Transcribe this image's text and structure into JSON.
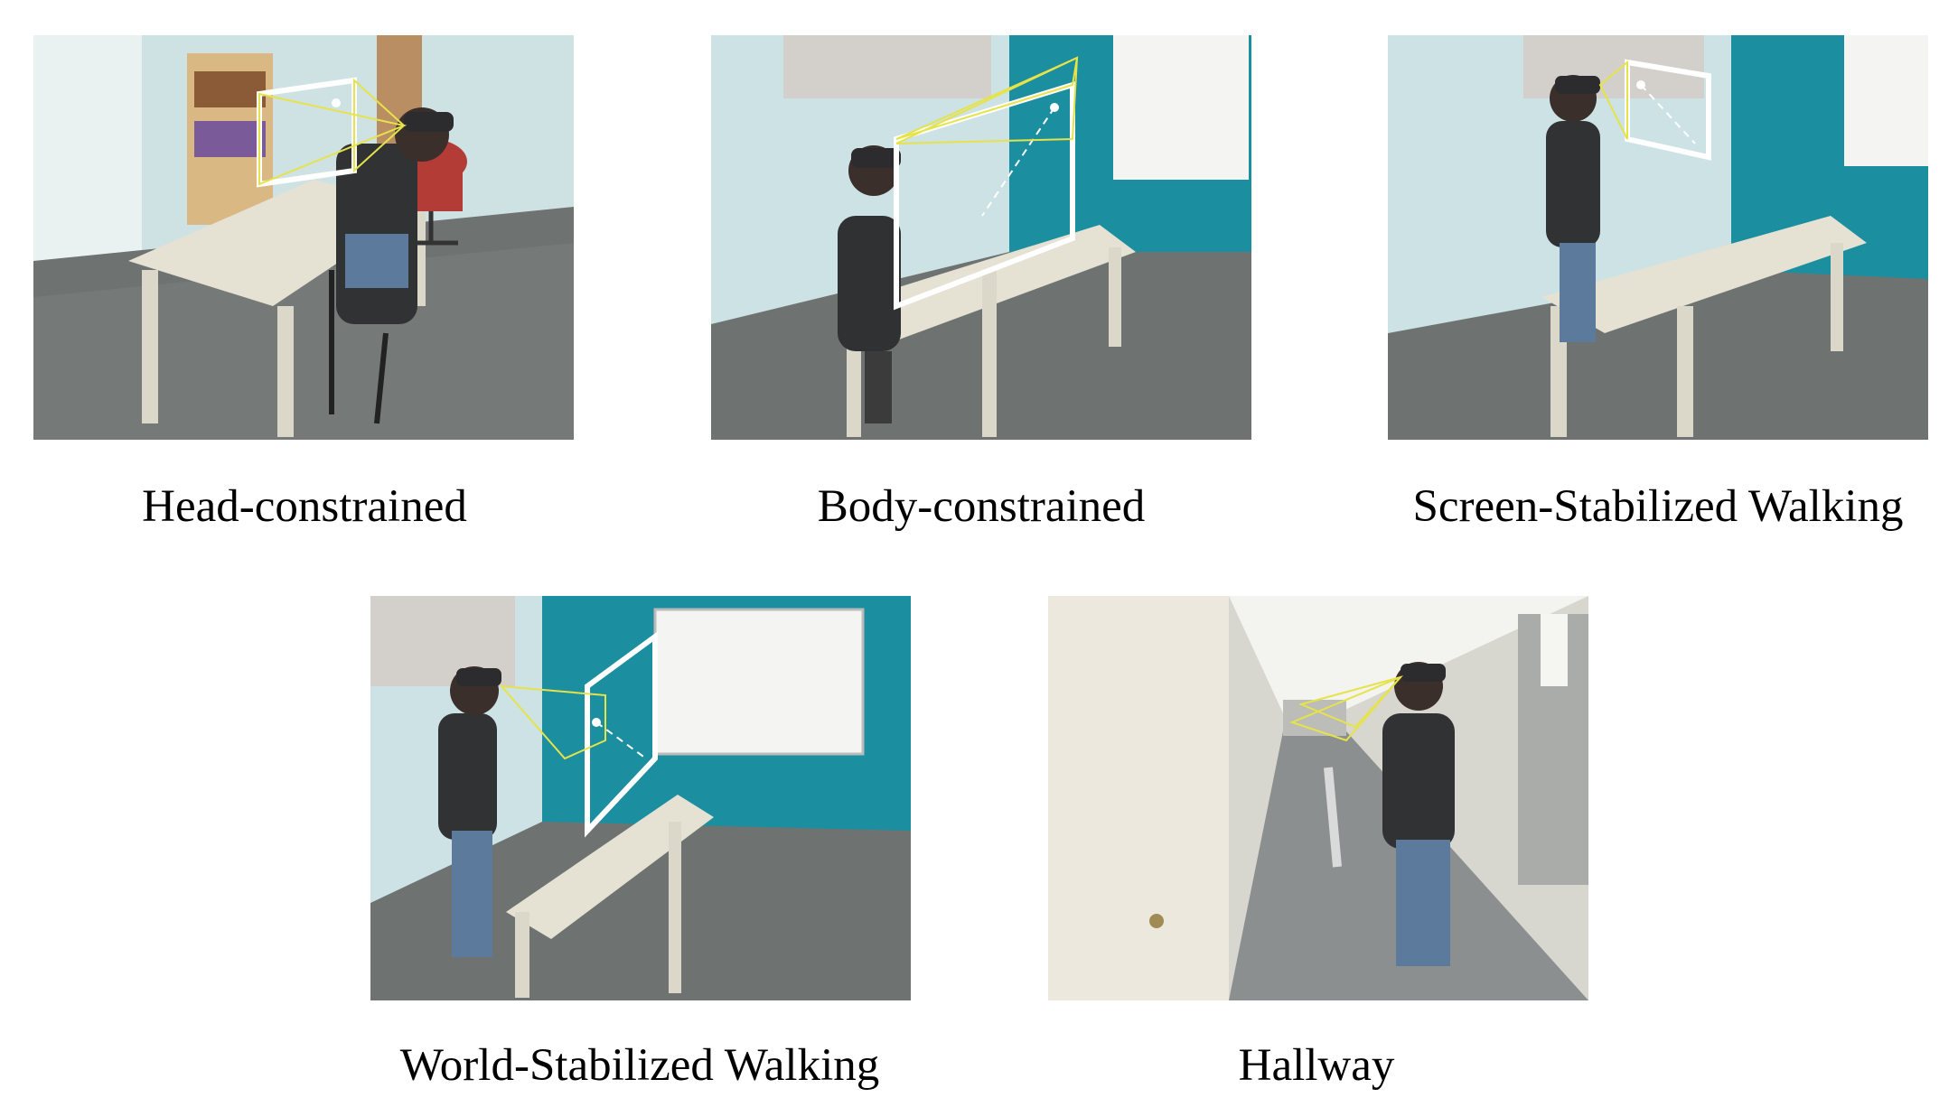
{
  "figure": {
    "panels": [
      {
        "id": "head-constrained",
        "caption": "Head-constrained",
        "scene": "seated participant wearing headset at table, virtual screen near face"
      },
      {
        "id": "body-constrained",
        "caption": "Body-constrained",
        "scene": "seated participant, large virtual screen in front of table"
      },
      {
        "id": "screen-stabilized-walking",
        "caption": "Screen-Stabilized Walking",
        "scene": "standing participant, virtual screen fixed to head view"
      },
      {
        "id": "world-stabilized-walking",
        "caption": "World-Stabilized Walking",
        "scene": "walking participant, virtual screen fixed at end of table"
      },
      {
        "id": "hallway",
        "caption": "Hallway",
        "scene": "participant walking down long hallway with headset"
      }
    ]
  },
  "colors": {
    "wall_light": "#cfe3e5",
    "wall_teal": "#1b8ea0",
    "carpet": "#6f7475",
    "table": "#e4e0d2",
    "overlay_white": "#ffffff",
    "frustum_yellow": "#e6e34a"
  }
}
